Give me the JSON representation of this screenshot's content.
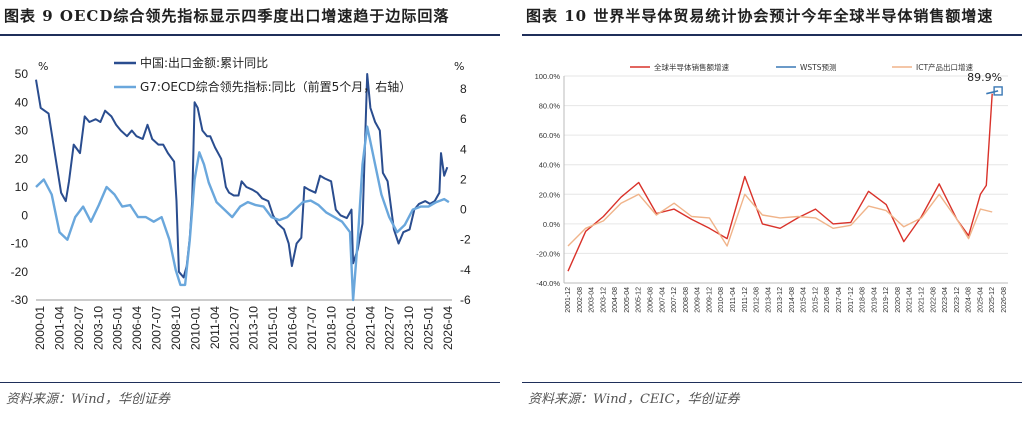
{
  "left": {
    "title": "图表 9 OECD综合领先指标显示四季度出口增速趋于边际回落",
    "source": "资料来源：Wind，华创证券",
    "chart_data": {
      "type": "line",
      "left_unit": "%",
      "right_unit": "%",
      "ylim_left": [
        -30,
        50
      ],
      "ylim_right": [
        -6,
        9
      ],
      "yticks_left": [
        -30,
        -20,
        -10,
        0,
        10,
        20,
        30,
        40,
        50
      ],
      "yticks_right": [
        -6,
        -4,
        -2,
        0,
        2,
        4,
        6,
        8
      ],
      "xlim": [
        2000.0,
        2026.5
      ],
      "xtick_labels": [
        "2000-01",
        "2001-04",
        "2002-07",
        "2003-10",
        "2005-01",
        "2006-04",
        "2007-07",
        "2008-10",
        "2010-01",
        "2011-04",
        "2012-07",
        "2013-10",
        "2015-01",
        "2016-04",
        "2017-07",
        "2018-10",
        "2020-01",
        "2021-04",
        "2022-07",
        "2023-10",
        "2025-01",
        "2026-04"
      ],
      "legend_position": "top",
      "series": [
        {
          "name": "中国:出口金额:累计同比",
          "axis": "left",
          "color": "#2a4d8f",
          "x": [
            2000.0,
            2000.3,
            2000.8,
            2001.2,
            2001.6,
            2001.9,
            2002.1,
            2002.4,
            2002.8,
            2003.1,
            2003.4,
            2003.8,
            2004.1,
            2004.4,
            2004.8,
            2005.1,
            2005.4,
            2005.8,
            2006.1,
            2006.4,
            2006.8,
            2007.1,
            2007.4,
            2007.8,
            2008.1,
            2008.4,
            2008.8,
            2008.95,
            2009.1,
            2009.4,
            2009.6,
            2009.8,
            2009.95,
            2010.1,
            2010.3,
            2010.6,
            2010.9,
            2011.1,
            2011.4,
            2011.8,
            2012.1,
            2012.3,
            2012.6,
            2012.9,
            2013.1,
            2013.4,
            2013.8,
            2014.1,
            2014.4,
            2014.8,
            2015.1,
            2015.4,
            2015.8,
            2016.1,
            2016.3,
            2016.6,
            2016.9,
            2017.1,
            2017.4,
            2017.8,
            2018.1,
            2018.4,
            2018.8,
            2019.1,
            2019.4,
            2019.8,
            2020.1,
            2020.2,
            2020.5,
            2020.8,
            2021.1,
            2021.3,
            2021.6,
            2021.9,
            2022.1,
            2022.4,
            2022.8,
            2023.1,
            2023.4,
            2023.8,
            2024.1,
            2024.4,
            2024.8,
            2025.1,
            2025.4,
            2025.7,
            2025.8,
            2026.0,
            2026.2
          ],
          "y": [
            48,
            38,
            36,
            22,
            8,
            5,
            12,
            25,
            22,
            35,
            33,
            34,
            33,
            37,
            35,
            32,
            30,
            28,
            30,
            28,
            27,
            32,
            27,
            25,
            25,
            22,
            19,
            5,
            -20,
            -22,
            -18,
            -8,
            5,
            40,
            38,
            30,
            28,
            28,
            24,
            20,
            10,
            8,
            7,
            7,
            12,
            10,
            9,
            8,
            6,
            5,
            0,
            -3,
            -5,
            -10,
            -18,
            -10,
            -8,
            10,
            9,
            8,
            14,
            13,
            12,
            2,
            0,
            -1,
            2,
            -17,
            -12,
            -3,
            50,
            38,
            33,
            30,
            15,
            12,
            -5,
            -10,
            -6,
            -5,
            2,
            4,
            5,
            4,
            5,
            8,
            22,
            14,
            17
          ]
        },
        {
          "name": "G7:OECD综合领先指标:同比（前置5个月，右轴）",
          "axis": "right",
          "color": "#6aa7dc",
          "x": [
            2000.0,
            2000.5,
            2001.0,
            2001.5,
            2002.0,
            2002.5,
            2003.0,
            2003.5,
            2004.0,
            2004.5,
            2005.0,
            2005.5,
            2006.0,
            2006.5,
            2007.0,
            2007.5,
            2008.0,
            2008.5,
            2008.9,
            2009.2,
            2009.5,
            2009.8,
            2010.1,
            2010.4,
            2010.7,
            2011.0,
            2011.5,
            2012.0,
            2012.5,
            2013.0,
            2013.5,
            2014.0,
            2014.5,
            2015.0,
            2015.5,
            2016.0,
            2016.5,
            2017.0,
            2017.5,
            2018.0,
            2018.5,
            2019.0,
            2019.5,
            2020.0,
            2020.2,
            2020.5,
            2020.8,
            2021.1,
            2021.3,
            2021.6,
            2022.0,
            2022.5,
            2023.0,
            2023.5,
            2024.0,
            2024.5,
            2025.0,
            2025.5,
            2026.0,
            2026.3
          ],
          "y": [
            1.5,
            2.0,
            1.0,
            -1.5,
            -2.0,
            -0.5,
            0.2,
            -0.8,
            0.3,
            1.5,
            1.0,
            0.2,
            0.3,
            -0.5,
            -0.5,
            -0.8,
            -0.5,
            -2.0,
            -4.0,
            -5.0,
            -5.0,
            -2.0,
            2.0,
            3.8,
            3.0,
            1.8,
            0.5,
            0.0,
            -0.5,
            0.2,
            0.5,
            0.3,
            0.2,
            -0.5,
            -0.7,
            -0.5,
            0.0,
            0.5,
            0.6,
            0.3,
            -0.2,
            -0.5,
            -0.8,
            -1.5,
            -6.0,
            -2.0,
            3.0,
            5.5,
            4.5,
            3.0,
            1.0,
            -0.5,
            -1.5,
            -1.0,
            0.0,
            0.2,
            0.2,
            0.5,
            0.7,
            0.5
          ]
        }
      ]
    }
  },
  "right": {
    "title": "图表 10 世界半导体贸易统计协会预计今年全球半导体销售额增速",
    "source": "资料来源：Wind，CEIC，华创证券",
    "chart_data": {
      "type": "line",
      "ylim": [
        -40,
        100
      ],
      "yticks": [
        -40,
        -20,
        0,
        20,
        40,
        60,
        80,
        100
      ],
      "ytick_labels": [
        "-40.0%",
        "-20.0%",
        "0.0%",
        "20.0%",
        "40.0%",
        "60.0%",
        "80.0%",
        "100.0%"
      ],
      "categories": [
        "2001-12",
        "2002-08",
        "2003-04",
        "2003-12",
        "2004-08",
        "2005-04",
        "2005-12",
        "2006-08",
        "2007-04",
        "2007-12",
        "2008-08",
        "2009-04",
        "2009-12",
        "2010-08",
        "2011-04",
        "2011-12",
        "2012-08",
        "2013-04",
        "2013-12",
        "2014-08",
        "2015-04",
        "2015-12",
        "2016-08",
        "2017-04",
        "2017-12",
        "2018-08",
        "2019-04",
        "2019-12",
        "2020-08",
        "2021-04",
        "2021-12",
        "2022-08",
        "2023-04",
        "2023-12",
        "2024-08",
        "2025-04",
        "2025-12",
        "2026-08"
      ],
      "legend_position": "top",
      "annotation": "89.9%",
      "series": [
        {
          "name": "全球半导体销售额增速",
          "color": "#d9322a",
          "x": [
            0,
            1.5,
            3,
            4.5,
            6,
            7.5,
            9,
            10.5,
            12,
            13.5,
            15,
            16.5,
            18,
            19.5,
            21,
            22.5,
            24,
            25.5,
            27,
            28.5,
            30,
            31.5,
            33,
            34,
            35,
            35.5,
            36
          ],
          "y": [
            -32,
            -5,
            5,
            18,
            28,
            7,
            10,
            3,
            -3,
            -10,
            32,
            0,
            -3,
            4,
            10,
            0,
            1,
            22,
            13,
            -12,
            5,
            27,
            3,
            -8,
            20,
            26,
            88
          ]
        },
        {
          "name": "WSTS预测",
          "color": "#3a78b5",
          "x": [
            35.5,
            36.5
          ],
          "y": [
            88,
            89.9
          ]
        },
        {
          "name": "ICT产品出口增速",
          "color": "#f0b48a",
          "x": [
            0,
            1.5,
            3,
            4.5,
            6,
            7.5,
            9,
            10.5,
            12,
            13.5,
            15,
            16.5,
            18,
            19.5,
            21,
            22.5,
            24,
            25.5,
            27,
            28.5,
            30,
            31.5,
            33,
            34,
            35,
            36
          ],
          "y": [
            -15,
            -3,
            2,
            14,
            20,
            6,
            14,
            5,
            4,
            -15,
            20,
            6,
            4,
            5,
            4,
            -3,
            -1,
            12,
            9,
            -2,
            4,
            20,
            3,
            -10,
            10,
            8
          ]
        }
      ]
    }
  }
}
